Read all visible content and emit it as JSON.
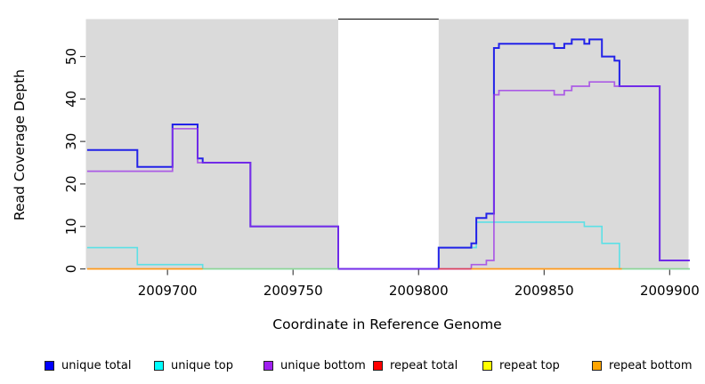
{
  "chart_data": {
    "type": "line",
    "subtype": "step-after-coverage-plot",
    "title": "",
    "xlabel": "Coordinate in Reference Genome",
    "ylabel": "Read Coverage Depth",
    "xlim": [
      2009667.5,
      2009907.5
    ],
    "ylim": [
      -0.1,
      58.8
    ],
    "grid": "off",
    "x_ticks": [
      "2009700",
      "2009750",
      "2009800",
      "2009850",
      "2009900"
    ],
    "x_tick_values": [
      2009700,
      2009750,
      2009800,
      2009850,
      2009900
    ],
    "y_ticks": [
      "0",
      "10",
      "20",
      "30",
      "40",
      "50"
    ],
    "y_tick_values": [
      0,
      10,
      20,
      30,
      40,
      50
    ],
    "background_color": "#ffffff",
    "shaded_regions": [
      {
        "x0": 2009667.5,
        "x1": 2009768,
        "color": "#dadada"
      },
      {
        "x0": 2009808,
        "x1": 2009907.5,
        "color": "#dadada"
      }
    ],
    "uncovered_gap": {
      "x0": 2009768,
      "x1": 2009808
    },
    "box_top_segment": {
      "x0": 2009768,
      "x1": 2009808,
      "color": "#222222"
    },
    "series": [
      {
        "name": "unique top",
        "color": "#5ce0e6",
        "width": 1.6,
        "opacity": 1,
        "segments": [
          {
            "points": [
              [
                2009668,
                5
              ],
              [
                2009688,
                1
              ],
              [
                2009714,
                0
              ],
              [
                2009808,
                5
              ],
              [
                2009823,
                11
              ],
              [
                2009866,
                10
              ],
              [
                2009873,
                6
              ],
              [
                2009880,
                0
              ]
            ],
            "x_end": 2009908
          }
        ]
      },
      {
        "name": "unique total",
        "color": "#2222e8",
        "width": 2,
        "opacity": 1,
        "segments": [
          {
            "points": [
              [
                2009668,
                28
              ],
              [
                2009688,
                24
              ],
              [
                2009702,
                34
              ],
              [
                2009712,
                26
              ],
              [
                2009714,
                25
              ],
              [
                2009733,
                10
              ],
              [
                2009768,
                0
              ],
              [
                2009808,
                5
              ],
              [
                2009821,
                6
              ],
              [
                2009823,
                12
              ],
              [
                2009827,
                13
              ],
              [
                2009830,
                52
              ],
              [
                2009832,
                53
              ],
              [
                2009854,
                52
              ],
              [
                2009858,
                53
              ],
              [
                2009861,
                54
              ],
              [
                2009866,
                53
              ],
              [
                2009868,
                54
              ],
              [
                2009873,
                50
              ],
              [
                2009878,
                49
              ],
              [
                2009880,
                43
              ],
              [
                2009896,
                2
              ]
            ],
            "x_end": 2009908
          }
        ]
      },
      {
        "name": "unique bottom",
        "color": "#9b30e8",
        "width": 1.7,
        "opacity": 0.75,
        "segments": [
          {
            "points": [
              [
                2009668,
                23
              ],
              [
                2009702,
                33
              ],
              [
                2009712,
                25
              ],
              [
                2009733,
                10
              ],
              [
                2009768,
                0
              ],
              [
                2009821,
                1
              ],
              [
                2009827,
                2
              ],
              [
                2009830,
                41
              ],
              [
                2009832,
                42
              ],
              [
                2009854,
                41
              ],
              [
                2009858,
                42
              ],
              [
                2009861,
                43
              ],
              [
                2009868,
                44
              ],
              [
                2009878,
                43
              ],
              [
                2009896,
                2
              ]
            ],
            "x_end": 2009908
          }
        ]
      },
      {
        "name": "repeat total",
        "color": "#e0404f",
        "width": 1.5,
        "opacity": 1,
        "segments": [
          {
            "points": [
              [
                2009808,
                0
              ]
            ],
            "x_end": 2009821
          }
        ]
      },
      {
        "name": "repeat top",
        "color": "#8fd48f",
        "width": 1.5,
        "opacity": 1,
        "segments": [
          {
            "points": [
              [
                2009714,
                0
              ]
            ],
            "x_end": 2009768
          },
          {
            "points": [
              [
                2009881,
                0
              ]
            ],
            "x_end": 2009908
          }
        ]
      },
      {
        "name": "repeat bottom",
        "color": "#ff9818",
        "width": 1.8,
        "opacity": 1,
        "segments": [
          {
            "points": [
              [
                2009668,
                0
              ]
            ],
            "x_end": 2009714
          },
          {
            "points": [
              [
                2009821,
                0
              ]
            ],
            "x_end": 2009881
          }
        ]
      }
    ],
    "legend": {
      "position": "bottom",
      "items": [
        {
          "label": "unique total",
          "color": "#0000ff"
        },
        {
          "label": "unique top",
          "color": "#00ffff"
        },
        {
          "label": "unique bottom",
          "color": "#a020f0"
        },
        {
          "label": "repeat total",
          "color": "#ff0000"
        },
        {
          "label": "repeat top",
          "color": "#ffff00"
        },
        {
          "label": "repeat bottom",
          "color": "#ffa500"
        }
      ]
    }
  }
}
